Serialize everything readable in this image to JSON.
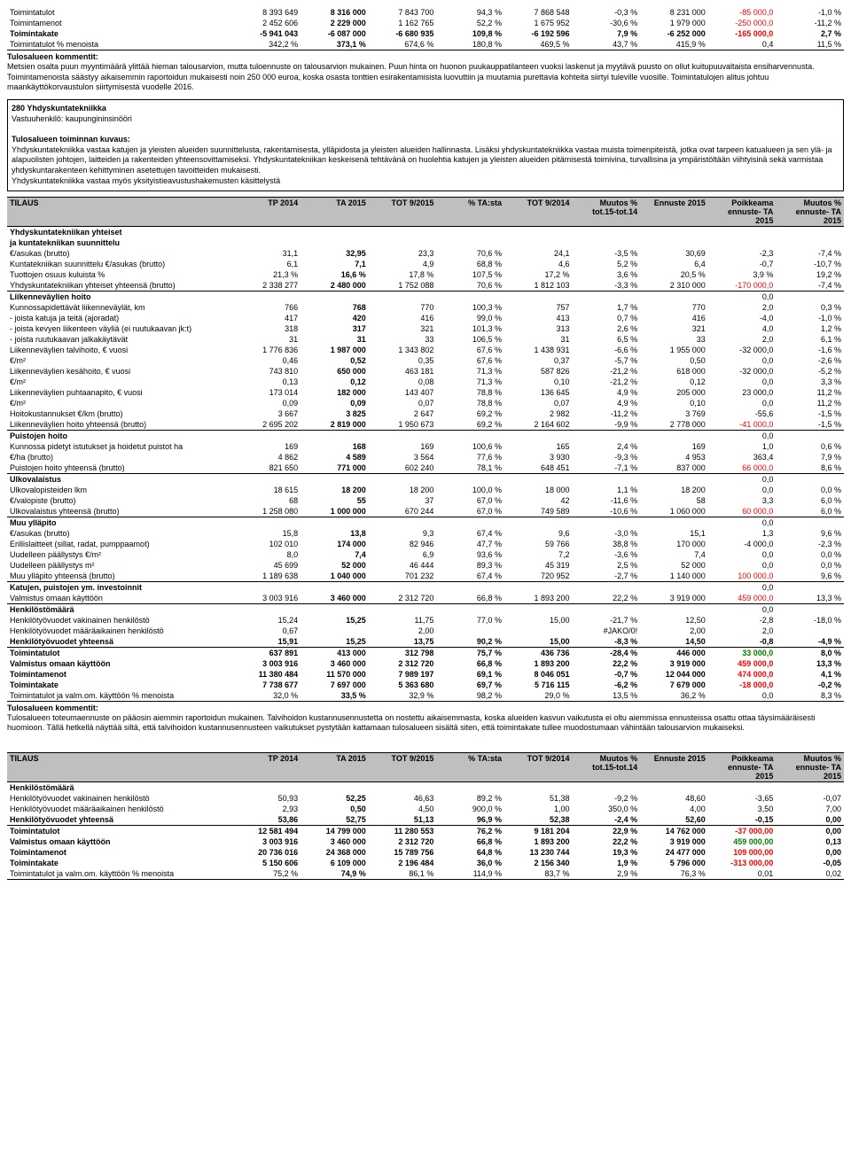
{
  "top_table": {
    "rows": [
      {
        "label": "Toimintatulot",
        "v": [
          "8 393 649",
          "8 316 000",
          "7 843 700",
          "94,3 %",
          "7 868 548",
          "-0,3 %",
          "8 231 000",
          "-85 000,0",
          "-1,0 %"
        ],
        "bold": false,
        "neg_idx": [
          7
        ]
      },
      {
        "label": "Toimintamenot",
        "v": [
          "2 452 606",
          "2 229 000",
          "1 162 765",
          "52,2 %",
          "1 675 952",
          "-30,6 %",
          "1 979 000",
          "-250 000,0",
          "-11,2 %"
        ],
        "neg_idx": [
          7
        ]
      },
      {
        "label": "Toimintakate",
        "v": [
          "-5 941 043",
          "-6 087 000",
          "-6 680 935",
          "109,8 %",
          "-6 192 596",
          "7,9 %",
          "-6 252 000",
          "-165 000,0",
          "2,7 %"
        ],
        "bold": true,
        "neg_idx": [
          7
        ]
      },
      {
        "label": "Toimintatulot % menoista",
        "v": [
          "342,2 %",
          "373,1 %",
          "674,6 %",
          "180,8 %",
          "469,5 %",
          "43,7 %",
          "415,9 %",
          "0,4",
          "11,5 %"
        ],
        "underline": true
      }
    ]
  },
  "top_comment_title": "Tulosalueen kommentit:",
  "top_comment_lines": [
    "Metsien osalta puun myyntimäärä ylittää hieman talousarvion, mutta tuloennuste on talousarvion mukainen. Puun hinta on huonon puukauppatilanteen vuoksi laskenut ja myytävä puusto on ollut kuitupuuvaltaista ensiharvennusta.",
    "Toimintamenoista säästyy aikaisemmin raportoidun mukaisesti noin 250 000 euroa, koska osasta tonttien esirakentamisista luovuttiin ja muutamia purettavia kohteita siirtyi tuleville vuosille. Toimintatulojen alitus johtuu maankäyttökorvaustulon siirtymisestä vuodelle 2016."
  ],
  "desc": {
    "title": "280 Yhdyskuntatekniikka",
    "subtitle": "Vastuuhenkilö: kaupungininsinööri",
    "heading": "Tulosalueen toiminnan kuvaus:",
    "body": "Yhdyskuntatekniikka vastaa katujen ja yleisten alueiden suunnittelusta, rakentamisesta, ylläpidosta ja yleisten alueiden hallinnasta. Lisäksi yhdyskuntatekniikka vastaa muista toimenpiteistä, jotka ovat tarpeen katualueen ja sen ylä- ja alapuolisten johtojen, laitteiden ja rakenteiden yhteensovittamiseksi. Yhdyskuntatekniikan keskeisenä tehtävänä on huolehtia katujen ja yleisten alueiden pitämisestä toimivina, turvallisina ja ympäristöltään viihtyisinä sekä varmistaa yhdyskuntarakenteen kehittyminen asetettujen tavoitteiden mukaisesti.",
    "body2": "Yhdyskuntatekniikka vastaa myös yksityistieavustushakemusten käsittelystä"
  },
  "tilaus_headers": [
    "TILAUS",
    "TP 2014",
    "TA 2015",
    "TOT 9/2015",
    "% TA:sta",
    "TOT 9/2014",
    "Muutos % tot.15-tot.14",
    "Ennuste 2015",
    "Poikkeama ennuste- TA 2015",
    "Muutos % ennuste- TA 2015"
  ],
  "main_sections": [
    {
      "title": "Yhdyskuntatekniikan yhteiset",
      "title2": "ja kuntatekniikan suunnittelu",
      "rows": [
        {
          "label": "€/asukas (brutto)",
          "v": [
            "31,1",
            "32,95",
            "23,3",
            "70,6 %",
            "24,1",
            "-3,5 %",
            "30,69",
            "-2,3",
            "-7,4 %"
          ]
        },
        {
          "label": "Kuntatekniikan suunnittelu €/asukas (brutto)",
          "v": [
            "6,1",
            "7,1",
            "4,9",
            "68,8 %",
            "4,6",
            "5,2 %",
            "6,4",
            "-0,7",
            "-10,7 %"
          ]
        },
        {
          "label": "Tuottojen osuus kuluista %",
          "v": [
            "21,3 %",
            "16,6 %",
            "17,8 %",
            "107,5 %",
            "17,2 %",
            "3,6 %",
            "20,5 %",
            "3,9 %",
            "19,2 %"
          ]
        },
        {
          "label": "Yhdyskuntatekniikan yhteiset yhteensä (brutto)",
          "v": [
            "2 338 277",
            "2 480 000",
            "1 752 088",
            "70,6 %",
            "1 812 103",
            "-3,3 %",
            "2 310 000",
            "-170 000,0",
            "-7,4 %"
          ],
          "underline": true,
          "neg_idx": [
            7
          ]
        }
      ]
    },
    {
      "title": "Liikenneväylien hoito",
      "extra": "0,0",
      "rows": [
        {
          "label": "Kunnossapidettävät liikenneväylät, km",
          "v": [
            "766",
            "768",
            "770",
            "100,3 %",
            "757",
            "1,7 %",
            "770",
            "2,0",
            "0,3 %"
          ]
        },
        {
          "label": "- joista katuja ja teitä (ajoradat)",
          "v": [
            "417",
            "420",
            "416",
            "99,0 %",
            "413",
            "0,7 %",
            "416",
            "-4,0",
            "-1,0 %"
          ]
        },
        {
          "label": "- joista kevyen liikenteen väyliä (ei ruutukaavan jk:t)",
          "v": [
            "318",
            "317",
            "321",
            "101,3 %",
            "313",
            "2,6 %",
            "321",
            "4,0",
            "1,2 %"
          ]
        },
        {
          "label": "- joista ruutukaavan jalkakäytävät",
          "v": [
            "31",
            "31",
            "33",
            "106,5 %",
            "31",
            "6,5 %",
            "33",
            "2,0",
            "6,1 %"
          ]
        },
        {
          "label": "Liikenneväylien talvihoito, € vuosi",
          "v": [
            "1 776 836",
            "1 987 000",
            "1 343 802",
            "67,6 %",
            "1 438 931",
            "-6,6 %",
            "1 955 000",
            "-32 000,0",
            "-1,6 %"
          ]
        },
        {
          "label": "€/m²",
          "v": [
            "0,46",
            "0,52",
            "0,35",
            "67,6 %",
            "0,37",
            "-5,7 %",
            "0,50",
            "0,0",
            "-2,6 %"
          ]
        },
        {
          "label": "Liikenneväylien kesähoito, € vuosi",
          "v": [
            "743 810",
            "650 000",
            "463 181",
            "71,3 %",
            "587 826",
            "-21,2 %",
            "618 000",
            "-32 000,0",
            "-5,2 %"
          ]
        },
        {
          "label": "€/m²",
          "v": [
            "0,13",
            "0,12",
            "0,08",
            "71,3 %",
            "0,10",
            "-21,2 %",
            "0,12",
            "0,0",
            "3,3 %"
          ]
        },
        {
          "label": "Liikenneväylien puhtaanapito, € vuosi",
          "v": [
            "173 014",
            "182 000",
            "143 407",
            "78,8 %",
            "136 645",
            "4,9 %",
            "205 000",
            "23 000,0",
            "11,2 %"
          ]
        },
        {
          "label": "€/m²",
          "v": [
            "0,09",
            "0,09",
            "0,07",
            "78,8 %",
            "0,07",
            "4,9 %",
            "0,10",
            "0,0",
            "11,2 %"
          ]
        },
        {
          "label": "Hoitokustannukset €/km (brutto)",
          "v": [
            "3 667",
            "3 825",
            "2 647",
            "69,2 %",
            "2 982",
            "-11,2 %",
            "3 769",
            "-55,6",
            "-1,5 %"
          ]
        },
        {
          "label": "Liikenneväylien hoito yhteensä (brutto)",
          "v": [
            "2 695 202",
            "2 819 000",
            "1 950 673",
            "69,2 %",
            "2 164 602",
            "-9,9 %",
            "2 778 000",
            "-41 000,0",
            "-1,5 %"
          ],
          "underline": true,
          "neg_idx": [
            7
          ]
        }
      ]
    },
    {
      "title": "Puistojen hoito",
      "extra": "0,0",
      "rows": [
        {
          "label": "Kunnossa pidetyt istutukset ja hoidetut puistot ha",
          "v": [
            "169",
            "168",
            "169",
            "100,6 %",
            "165",
            "2,4 %",
            "169",
            "1,0",
            "0,6 %"
          ]
        },
        {
          "label": "€/ha (brutto)",
          "v": [
            "4 862",
            "4 589",
            "3 564",
            "77,6 %",
            "3 930",
            "-9,3 %",
            "4 953",
            "363,4",
            "7,9 %"
          ]
        },
        {
          "label": "Puistojen hoito yhteensä (brutto)",
          "v": [
            "821 650",
            "771 000",
            "602 240",
            "78,1 %",
            "648 451",
            "-7,1 %",
            "837 000",
            "66 000,0",
            "8,6 %"
          ],
          "underline": true,
          "neg_idx": [
            7
          ]
        }
      ]
    },
    {
      "title": "Ulkovalaistus",
      "extra": "0,0",
      "rows": [
        {
          "label": "Ulkovalopisteiden lkm",
          "v": [
            "18 615",
            "18 200",
            "18 200",
            "100,0 %",
            "18 000",
            "1,1 %",
            "18 200",
            "0,0",
            "0,0 %"
          ]
        },
        {
          "label": "€/valopiste (brutto)",
          "v": [
            "68",
            "55",
            "37",
            "67,0 %",
            "42",
            "-11,6 %",
            "58",
            "3,3",
            "6,0 %"
          ]
        },
        {
          "label": "Ulkovalaistus yhteensä (brutto)",
          "v": [
            "1 258 080",
            "1 000 000",
            "670 244",
            "67,0 %",
            "749 589",
            "-10,6 %",
            "1 060 000",
            "60 000,0",
            "6,0 %"
          ],
          "underline": true,
          "neg_idx": [
            7
          ]
        }
      ]
    },
    {
      "title": "Muu ylläpito",
      "extra": "0,0",
      "rows": [
        {
          "label": "€/asukas (brutto)",
          "v": [
            "15,8",
            "13,8",
            "9,3",
            "67,4 %",
            "9,6",
            "-3,0 %",
            "15,1",
            "1,3",
            "9,6 %"
          ]
        },
        {
          "label": "Erillislaitteet (sillat, radat, pumppaamot)",
          "v": [
            "102 010",
            "174 000",
            "82 946",
            "47,7 %",
            "59 766",
            "38,8 %",
            "170 000",
            "-4 000,0",
            "-2,3 %"
          ]
        },
        {
          "label": "Uudelleen päällystys €/m²",
          "v": [
            "8,0",
            "7,4",
            "6,9",
            "93,6 %",
            "7,2",
            "-3,6 %",
            "7,4",
            "0,0",
            "0,0 %"
          ]
        },
        {
          "label": "Uudelleen päällystys m²",
          "v": [
            "45 699",
            "52 000",
            "46 444",
            "89,3 %",
            "45 319",
            "2,5 %",
            "52 000",
            "0,0",
            "0,0 %"
          ]
        },
        {
          "label": "Muu ylläpito yhteensä (brutto)",
          "v": [
            "1 189 638",
            "1 040 000",
            "701 232",
            "67,4 %",
            "720 952",
            "-2,7 %",
            "1 140 000",
            "100 000,0",
            "9,6 %"
          ],
          "underline": true,
          "neg_idx": [
            7
          ]
        }
      ]
    },
    {
      "title": "Katujen, puistojen ym. investoinnit",
      "extra": "0,0",
      "rows": [
        {
          "label": "Valmistus omaan käyttöön",
          "v": [
            "3 003 916",
            "3 460 000",
            "2 312 720",
            "66,8 %",
            "1 893 200",
            "22,2 %",
            "3 919 000",
            "459 000,0",
            "13,3 %"
          ],
          "underline": true,
          "neg_idx": [
            7
          ]
        }
      ]
    },
    {
      "title": "Henkilöstömäärä",
      "extra": "0,0",
      "rows": [
        {
          "label": "Henkilötyövuodet vakinainen henkilöstö",
          "v": [
            "15,24",
            "15,25",
            "11,75",
            "77,0 %",
            "15,00",
            "-21,7 %",
            "12,50",
            "-2,8",
            "-18,0 %"
          ]
        },
        {
          "label": "Henkilötyövuodet määräaikainen henkilöstö",
          "v": [
            "0,67",
            "",
            "2,00",
            "",
            "",
            "#JAKO/0!",
            "2,00",
            "2,0",
            ""
          ]
        },
        {
          "label": "Henkilötyövuodet yhteensä",
          "v": [
            "15,91",
            "15,25",
            "13,75",
            "90,2 %",
            "15,00",
            "-8,3 %",
            "14,50",
            "-0,8",
            "-4,9 %"
          ],
          "bold": true,
          "underline": true
        }
      ]
    }
  ],
  "main_footer": [
    {
      "label": "Toimintatulot",
      "v": [
        "637 891",
        "413 000",
        "312 798",
        "75,7 %",
        "436 736",
        "-28,4 %",
        "446 000",
        "33 000,0",
        "8,0 %"
      ],
      "bold": true,
      "grn_idx": [
        7
      ]
    },
    {
      "label": "Valmistus omaan käyttöön",
      "v": [
        "3 003 916",
        "3 460 000",
        "2 312 720",
        "66,8 %",
        "1 893 200",
        "22,2 %",
        "3 919 000",
        "459 000,0",
        "13,3 %"
      ],
      "bold": true,
      "neg_idx": [
        7
      ]
    },
    {
      "label": "Toimintamenot",
      "v": [
        "11 380 484",
        "11 570 000",
        "7 989 197",
        "69,1 %",
        "8 046 051",
        "-0,7 %",
        "12 044 000",
        "474 000,0",
        "4,1 %"
      ],
      "bold": true,
      "neg_idx": [
        7
      ]
    },
    {
      "label": "Toimintakate",
      "v": [
        "7 738 677",
        "7 697 000",
        "5 363 680",
        "69,7 %",
        "5 716 115",
        "-6,2 %",
        "7 679 000",
        "-18 000,0",
        "-0,2 %"
      ],
      "bold": true,
      "neg_idx": [
        7
      ]
    },
    {
      "label": "Toimintatulot ja valm.om. käyttöön % menoista",
      "v": [
        "32,0 %",
        "33,5 %",
        "32,9 %",
        "98,2 %",
        "29,0 %",
        "13,5 %",
        "36,2 %",
        "0,0",
        "8,3 %"
      ],
      "underline": true
    }
  ],
  "bottom_comment_title": "Tulosalueen kommentit:",
  "bottom_comment": "Tulosalueen toteumaennuste on pääosin aiemmin raportoidun mukainen. Talvihoidon kustannusennustetta on nostettu aikaisemmasta, koska alueiden kasvun vaikutusta ei oltu aiemmissa ennusteissa osattu ottaa täysimääräisesti huomioon. Tällä hetkellä näyttää siltä, että talvihoidon kustannusennusteen vaikutukset pystytään kattamaan tulosalueen sisältä siten, että toimintakate tullee muodostumaan vähintään talousarvion mukaiseksi.",
  "bottom_table": {
    "section": "Henkilöstömäärä",
    "rows": [
      {
        "label": "Henkilötyövuodet vakinainen henkilöstö",
        "v": [
          "50,93",
          "52,25",
          "46,63",
          "89,2 %",
          "51,38",
          "-9,2 %",
          "48,60",
          "-3,65",
          "-0,07"
        ]
      },
      {
        "label": "Henkilötyövuodet määräaikainen henkilöstö",
        "v": [
          "2,93",
          "0,50",
          "4,50",
          "900,0 %",
          "1,00",
          "350,0 %",
          "4,00",
          "3,50",
          "7,00"
        ]
      },
      {
        "label": "Henkilötyövuodet yhteensä",
        "v": [
          "53,86",
          "52,75",
          "51,13",
          "96,9 %",
          "52,38",
          "-2,4 %",
          "52,60",
          "-0,15",
          "0,00"
        ],
        "bold": true,
        "underline": true
      }
    ],
    "footer": [
      {
        "label": "Toimintatulot",
        "v": [
          "12 581 494",
          "14 799 000",
          "11 280 553",
          "76,2 %",
          "9 181 204",
          "22,9 %",
          "14 762 000",
          "-37 000,00",
          "0,00"
        ],
        "bold": true,
        "neg_idx": [
          7
        ]
      },
      {
        "label": "Valmistus omaan käyttöön",
        "v": [
          "3 003 916",
          "3 460 000",
          "2 312 720",
          "66,8 %",
          "1 893 200",
          "22,2 %",
          "3 919 000",
          "459 000,00",
          "0,13"
        ],
        "bold": true,
        "grn_idx": [
          7
        ]
      },
      {
        "label": "Toimintamenot",
        "v": [
          "20 736 016",
          "24 368 000",
          "15 789 756",
          "64,8 %",
          "13 230 744",
          "19,3 %",
          "24 477 000",
          "109 000,00",
          "0,00"
        ],
        "bold": true,
        "neg_idx": [
          7
        ]
      },
      {
        "label": "Toimintakate",
        "v": [
          "5 150 606",
          "6 109 000",
          "2 196 484",
          "36,0 %",
          "2 156 340",
          "1,9 %",
          "5 796 000",
          "-313 000,00",
          "-0,05"
        ],
        "bold": true,
        "neg_idx": [
          7
        ]
      },
      {
        "label": "Toimintatulot ja valm.om. käyttöön % menoista",
        "v": [
          "75,2 %",
          "74,9 %",
          "86,1 %",
          "114,9 %",
          "83,7 %",
          "2,9 %",
          "76,3 %",
          "0,01",
          "0,02"
        ],
        "underline": true
      }
    ]
  }
}
